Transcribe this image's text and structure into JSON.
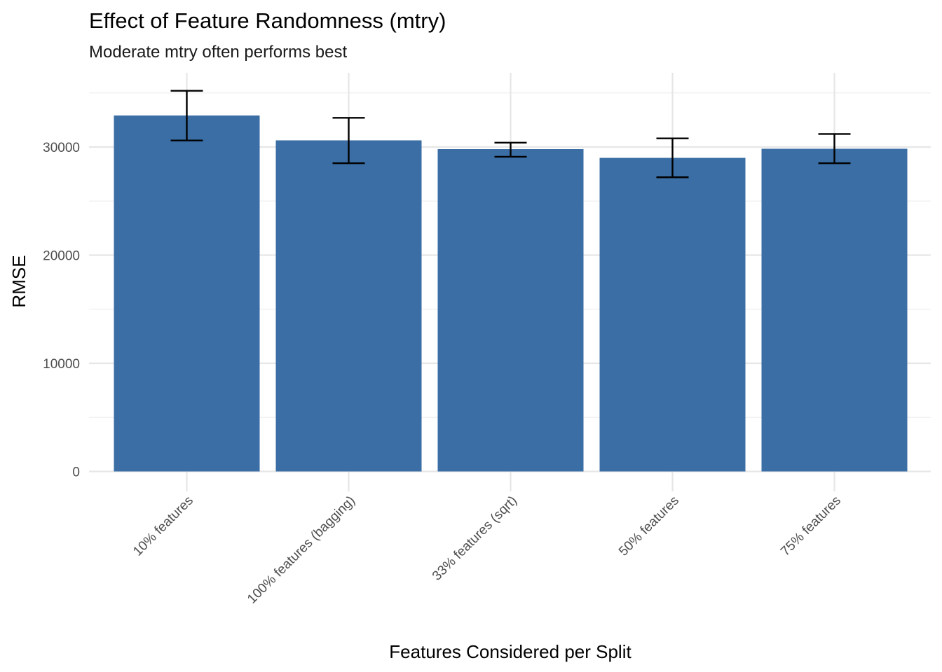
{
  "chart_data": {
    "type": "bar",
    "title": "Effect of Feature Randomness (mtry)",
    "subtitle": "Moderate mtry often performs best",
    "xlabel": "Features Considered per Split",
    "ylabel": "RMSE",
    "categories": [
      "10% features",
      "100% features (bagging)",
      "33% features (sqrt)",
      "50% features",
      "75% features"
    ],
    "values": [
      32900,
      30600,
      29800,
      29000,
      29850
    ],
    "error_low": [
      30600,
      28500,
      29100,
      27200,
      28500
    ],
    "error_high": [
      35200,
      32700,
      30400,
      30800,
      31200
    ],
    "ylim": [
      0,
      36000
    ],
    "yticks": [
      0,
      10000,
      20000,
      30000
    ],
    "ytick_labels": [
      "0",
      "10000",
      "20000",
      "30000"
    ],
    "bar_color": "#3a6ea5",
    "grid": true,
    "legend": "none"
  }
}
